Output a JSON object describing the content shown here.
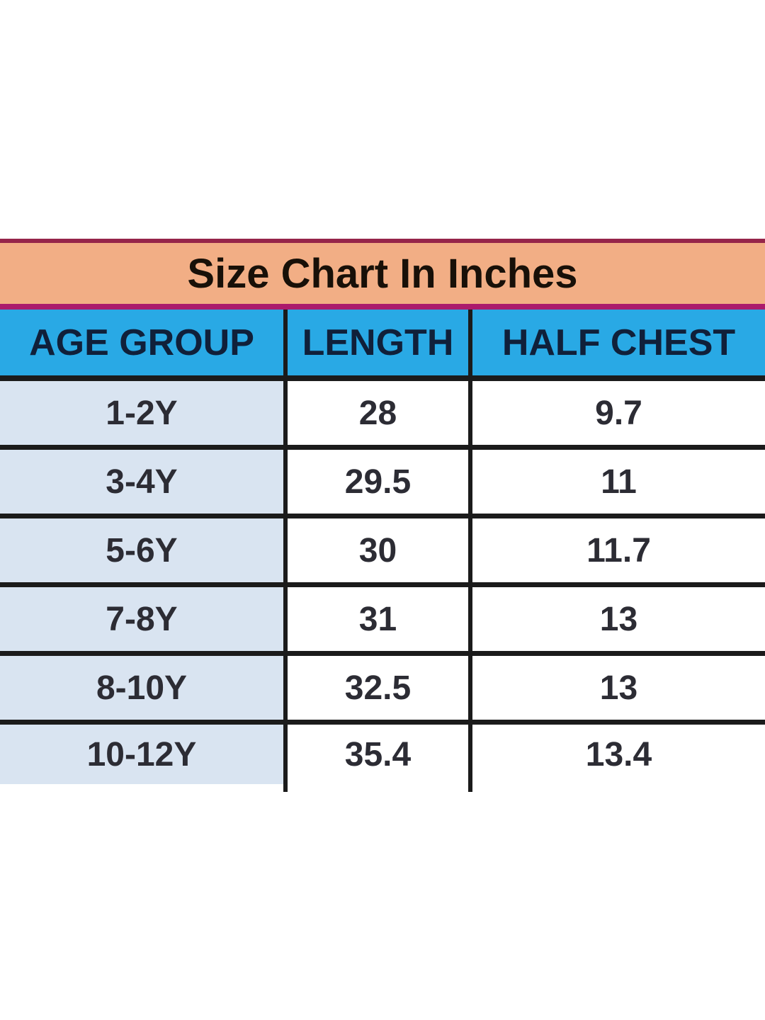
{
  "chart_data": {
    "type": "table",
    "title": "Size Chart In Inches",
    "columns": [
      "AGE GROUP",
      "LENGTH",
      "HALF CHEST"
    ],
    "rows": [
      [
        "1-2Y",
        "28",
        "9.7"
      ],
      [
        "3-4Y",
        "29.5",
        "11"
      ],
      [
        "5-6Y",
        "30",
        "11.7"
      ],
      [
        "7-8Y",
        "31",
        "13"
      ],
      [
        "8-10Y",
        "32.5",
        "13"
      ],
      [
        "10-12Y",
        "35.4",
        "13.4"
      ]
    ]
  },
  "colors": {
    "page_bg": "#FFFFFF",
    "title_bg": "#F2AE85",
    "title_border_top": "#96254A",
    "title_border_bottom": "#AB1A6C",
    "title_text": "#181008",
    "header_bg": "#29A9E5",
    "header_text": "#10203A",
    "first_col_bg": "#D9E4F1",
    "cell_bg": "#FFFFFF",
    "grid_line": "#1B1B1B",
    "data_text": "#2C2C34"
  }
}
